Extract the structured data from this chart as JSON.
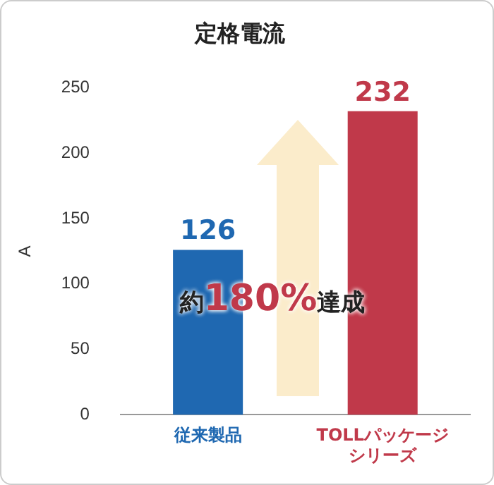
{
  "chart_data": {
    "type": "bar",
    "title": "定格電流",
    "ylabel": "A",
    "categories": [
      "従来製品",
      "TOLLパッケージシリーズ"
    ],
    "values": [
      126,
      232
    ],
    "colors": [
      "#1f68b1",
      "#c0394a"
    ],
    "ylim": [
      0,
      250
    ],
    "yticks": [
      0,
      50,
      100,
      150,
      200,
      250
    ],
    "grid": false,
    "legend": false,
    "data_labels": true,
    "annotations": [
      "約180%達成"
    ]
  }
}
